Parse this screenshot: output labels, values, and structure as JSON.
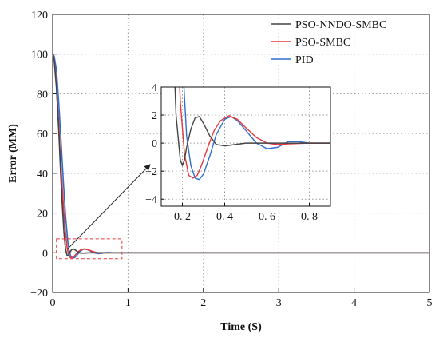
{
  "chart_data": {
    "type": "line",
    "title": "",
    "xlabel": "Time (S)",
    "ylabel": "Error (MM)",
    "xlim": [
      0,
      5
    ],
    "ylim": [
      -20,
      120
    ],
    "x_ticks": [
      0,
      1,
      2,
      3,
      4,
      5
    ],
    "y_ticks": [
      -20,
      0,
      20,
      40,
      60,
      80,
      100,
      120
    ],
    "grid": "dotted",
    "legend_position": "top-right",
    "colors": {
      "PSO-NNDO-SMBC": "#444444",
      "PSO-SMBC": "#e8383d",
      "PID": "#2f6fd0"
    },
    "series": [
      {
        "name": "PSO-NNDO-SMBC",
        "x": [
          0,
          0.02,
          0.05,
          0.08,
          0.1,
          0.12,
          0.15,
          0.17,
          0.19,
          0.2,
          0.21,
          0.22,
          0.24,
          0.26,
          0.28,
          0.3,
          0.33,
          0.36,
          0.4,
          0.45,
          0.5,
          0.6,
          0.7,
          0.8,
          0.9,
          5
        ],
        "values": [
          100,
          97,
          83,
          62,
          45,
          29,
          10,
          2,
          -1.2,
          -1.6,
          -1.2,
          -0.3,
          1.0,
          1.8,
          1.9,
          1.4,
          0.5,
          -0.1,
          -0.2,
          -0.1,
          0,
          0,
          0,
          0,
          0,
          0
        ]
      },
      {
        "name": "PSO-SMBC",
        "x": [
          0,
          0.02,
          0.05,
          0.08,
          0.1,
          0.13,
          0.16,
          0.19,
          0.21,
          0.23,
          0.25,
          0.27,
          0.29,
          0.32,
          0.35,
          0.38,
          0.42,
          0.46,
          0.5,
          0.55,
          0.6,
          0.65,
          0.7,
          0.8,
          0.9,
          5
        ],
        "values": [
          100,
          97,
          84,
          65,
          50,
          31,
          14,
          3,
          -0.8,
          -2.3,
          -2.5,
          -2.3,
          -1.6,
          -0.3,
          0.9,
          1.6,
          1.95,
          1.7,
          1.1,
          0.4,
          0,
          -0.1,
          -0.05,
          0,
          0,
          0
        ]
      },
      {
        "name": "PID",
        "x": [
          0,
          0.02,
          0.05,
          0.08,
          0.11,
          0.14,
          0.17,
          0.2,
          0.22,
          0.24,
          0.26,
          0.28,
          0.3,
          0.33,
          0.36,
          0.4,
          0.43,
          0.46,
          0.5,
          0.55,
          0.6,
          0.65,
          0.7,
          0.75,
          0.8,
          0.9,
          5
        ],
        "values": [
          100,
          99,
          92,
          76,
          57,
          37,
          19,
          6,
          0.5,
          -1.6,
          -2.5,
          -2.6,
          -2.2,
          -0.9,
          0.6,
          1.7,
          1.9,
          1.6,
          0.9,
          0,
          -0.4,
          -0.3,
          0.1,
          0.1,
          0,
          0,
          0
        ]
      }
    ],
    "inset": {
      "xlim": [
        0.1,
        0.9
      ],
      "ylim": [
        -4.5,
        4
      ],
      "x_ticks": [
        0.2,
        0.4,
        0.6,
        0.8
      ],
      "x_tick_labels": [
        "0. 2",
        "0. 4",
        "0. 6",
        "0. 8"
      ],
      "y_ticks": [
        -4,
        -2,
        0,
        2,
        4
      ],
      "zoom_box": {
        "x": [
          0.05,
          0.92
        ],
        "y": [
          -3,
          7
        ]
      }
    }
  }
}
